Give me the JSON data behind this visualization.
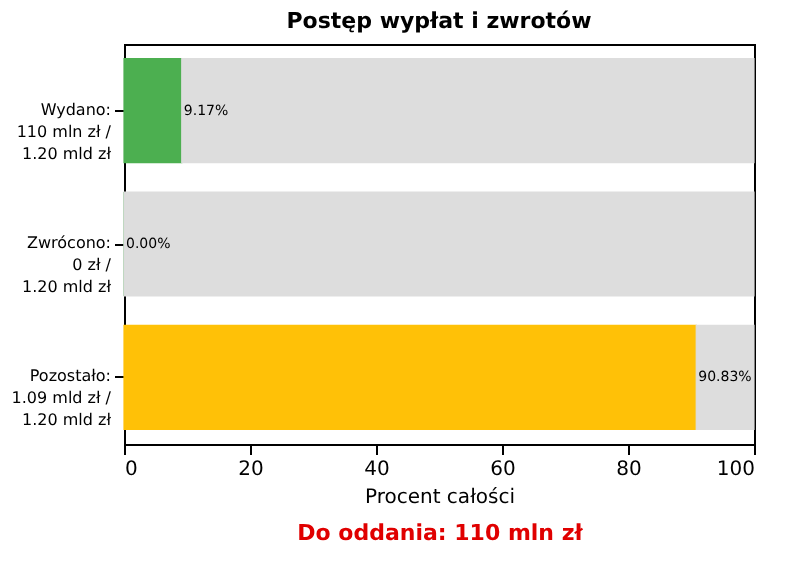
{
  "chart_data": {
    "type": "bar",
    "orientation": "horizontal",
    "stacked": true,
    "title": "Postęp wypłat i zwrotów",
    "xlabel": "Procent całości",
    "categories": [
      "Wydano:\n110 mln zł /\n1.20 mld zł",
      "Zwrócono:\n0 zł /\n1.20 mld zł",
      "Pozostało:\n1.09 mld zł /\n1.20 mld zł"
    ],
    "series": [
      {
        "colors": [
          "#4caf50",
          "#4caf50",
          "#ffc107"
        ],
        "values": [
          9.17,
          0.0,
          90.83
        ],
        "value_labels": [
          "9.17%",
          "0.00%",
          "90.83%"
        ]
      },
      {
        "color": "#dddddd",
        "values": [
          90.83,
          100,
          9.17
        ]
      }
    ],
    "xlim": [
      0,
      100
    ],
    "xticks": [
      0,
      20,
      40,
      60,
      80,
      100
    ],
    "grid": false,
    "annotations": [
      "Do oddania: 110 mln zł"
    ]
  }
}
